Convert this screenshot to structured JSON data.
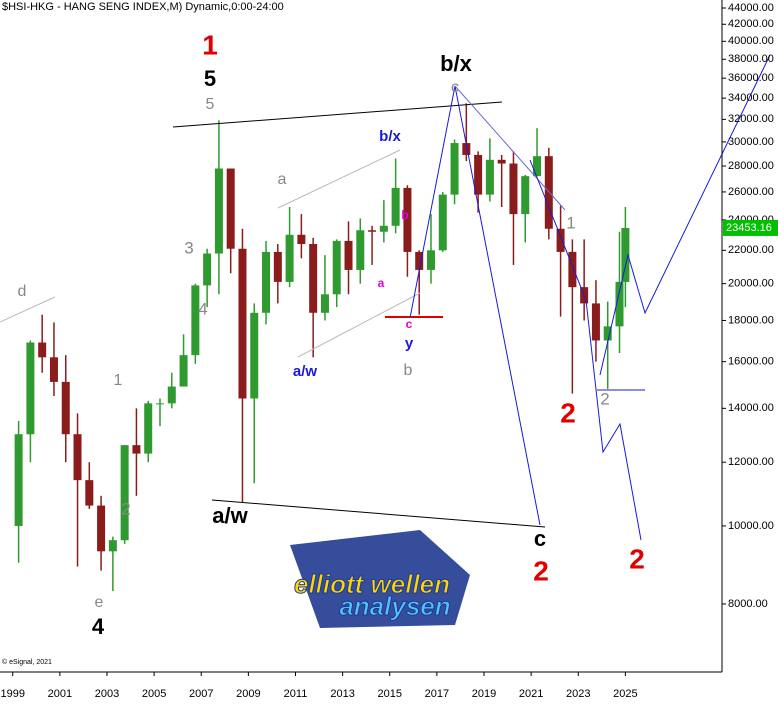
{
  "chart_data": {
    "type": "candlestick",
    "title": "$HSI-HKG - HANG SENG INDEX,M) Dynamic,0:00-24:00",
    "credit": "© eSignal, 2021",
    "logo": [
      "elliott wellen",
      "analysen"
    ],
    "log_scale": true,
    "up_color": "#2f9a2f",
    "down_color": "#8a1c1c",
    "x": [
      1999.25,
      1999.75,
      2000.25,
      2000.75,
      2001.25,
      2001.75,
      2002.25,
      2002.75,
      2003.25,
      2003.75,
      2004.25,
      2004.75,
      2005.25,
      2005.75,
      2006.25,
      2006.75,
      2007.25,
      2007.75,
      2008.25,
      2008.75,
      2009.25,
      2009.75,
      2010.25,
      2010.75,
      2011.25,
      2011.75,
      2012.25,
      2012.75,
      2013.25,
      2013.75,
      2014.25,
      2014.75,
      2015.25,
      2015.75,
      2016.25,
      2016.75,
      2017.25,
      2017.75,
      2018.25,
      2018.75,
      2019.25,
      2019.75,
      2020.25,
      2020.75,
      2021.25,
      2021.75,
      2022.25,
      2022.75,
      2023.25,
      2023.75,
      2024.25,
      2024.75,
      2025.0
    ],
    "open": [
      10000,
      13000,
      16900,
      16200,
      15100,
      13000,
      11400,
      10600,
      9300,
      9600,
      12600,
      12300,
      14200,
      14200,
      14900,
      16300,
      19900,
      21800,
      27800,
      22100,
      14400,
      18400,
      21900,
      20100,
      23000,
      22400,
      18400,
      19400,
      22600,
      20800,
      23300,
      23200,
      23600,
      26300,
      21900,
      20800,
      22000,
      25800,
      29900,
      28900,
      25800,
      28500,
      28200,
      24400,
      27200,
      28800,
      23400,
      21900,
      19800,
      18900,
      17000,
      17700,
      20100
    ],
    "high": [
      13500,
      17000,
      18300,
      17900,
      16300,
      13800,
      12000,
      10900,
      9700,
      12600,
      14000,
      14300,
      14400,
      15500,
      17300,
      20000,
      22100,
      31900,
      27800,
      23400,
      18900,
      22600,
      22400,
      24900,
      24400,
      22800,
      21700,
      22700,
      23900,
      24100,
      23600,
      25400,
      28600,
      26500,
      22000,
      24400,
      26000,
      30200,
      33500,
      29200,
      30300,
      28900,
      29200,
      27300,
      31200,
      29500,
      25000,
      22700,
      22700,
      20200,
      19000,
      23200,
      24900
    ],
    "low": [
      9000,
      12000,
      15500,
      14500,
      12000,
      8900,
      10500,
      8800,
      8300,
      9500,
      10900,
      12000,
      13300,
      14000,
      14900,
      15900,
      18700,
      19400,
      20600,
      10700,
      11300,
      17800,
      18900,
      19800,
      21500,
      16200,
      18000,
      18700,
      19400,
      20000,
      21100,
      22500,
      23100,
      20400,
      18300,
      20000,
      21900,
      25100,
      28400,
      24500,
      25300,
      24900,
      21100,
      22500,
      27200,
      22700,
      18200,
      14600,
      18000,
      16000,
      14800,
      16400,
      18700
    ],
    "close": [
      13000,
      16900,
      16200,
      15100,
      13000,
      11400,
      10600,
      9300,
      9600,
      12600,
      12300,
      14200,
      14200,
      14900,
      16300,
      19900,
      21800,
      27800,
      22100,
      14400,
      18400,
      21900,
      20100,
      23000,
      22400,
      18400,
      19400,
      22600,
      20800,
      23300,
      23200,
      23600,
      26300,
      21900,
      20800,
      22000,
      25800,
      29900,
      28900,
      25800,
      28500,
      28200,
      24400,
      27200,
      28800,
      23400,
      21900,
      19800,
      18900,
      17000,
      17700,
      20100,
      23453.16
    ],
    "xlim": [
      1998.46,
      2029.1
    ],
    "xticks": [
      1999,
      2001,
      2003,
      2005,
      2007,
      2009,
      2011,
      2013,
      2015,
      2017,
      2019,
      2021,
      2023,
      2025
    ],
    "ylim": [
      6585,
      45020
    ],
    "yticks": [
      {
        "value": 44000,
        "label": "44000.00"
      },
      {
        "value": 42000,
        "label": "42000.00"
      },
      {
        "value": 40000,
        "label": "40000.00"
      },
      {
        "value": 38000,
        "label": "38000.00"
      },
      {
        "value": 36000,
        "label": "36000.00"
      },
      {
        "value": 34000,
        "label": "34000.00"
      },
      {
        "value": 32000,
        "label": "32000.00"
      },
      {
        "value": 30000,
        "label": "30000.00"
      },
      {
        "value": 28000,
        "label": "28000.00"
      },
      {
        "value": 26000,
        "label": "26000.00"
      },
      {
        "value": 24000,
        "label": "24000.00"
      },
      {
        "value": 22000,
        "label": "22000.00"
      },
      {
        "value": 20000,
        "label": "20000.00"
      },
      {
        "value": 18000,
        "label": "18000.00"
      },
      {
        "value": 16000,
        "label": "16000.00"
      },
      {
        "value": 14000,
        "label": "14000.00"
      },
      {
        "value": 12000,
        "label": "12000.00"
      },
      {
        "value": 10000,
        "label": "10000.00"
      },
      {
        "value": 8000,
        "label": "8000.00"
      }
    ],
    "annotations": [
      {
        "text": "1",
        "color": "#e00000"
      },
      {
        "text": "5",
        "color": "#000000"
      },
      {
        "text": "5",
        "color": "#888888"
      },
      {
        "text": "b/x",
        "color": "#000000"
      },
      {
        "text": "c",
        "color": "#888888"
      },
      {
        "text": "b/x",
        "color": "#1a1ad6"
      },
      {
        "text": "a",
        "color": "#888888"
      },
      {
        "text": "b",
        "color": "#e000e0"
      },
      {
        "text": "3",
        "color": "#888888"
      },
      {
        "text": "4",
        "color": "#888888"
      },
      {
        "text": "a",
        "color": "#e000e0"
      },
      {
        "text": "c",
        "color": "#e000e0"
      },
      {
        "text": "y",
        "color": "#1a1ad6"
      },
      {
        "text": "a/w",
        "color": "#1a1ad6"
      },
      {
        "text": "b",
        "color": "#888888"
      },
      {
        "text": "d",
        "color": "#888888"
      },
      {
        "text": "1",
        "color": "#888888"
      },
      {
        "text": "2",
        "color": "#888888"
      },
      {
        "text": "1",
        "color": "#888888"
      },
      {
        "text": "2",
        "color": "#e00000"
      },
      {
        "text": "2",
        "color": "#888888"
      },
      {
        "text": "a/w",
        "color": "#000000"
      },
      {
        "text": "c",
        "color": "#000000"
      },
      {
        "text": "2",
        "color": "#e00000"
      },
      {
        "text": "2",
        "color": "#e00000"
      },
      {
        "text": "e",
        "color": "#888888"
      },
      {
        "text": "4",
        "color": "#000000"
      }
    ]
  }
}
